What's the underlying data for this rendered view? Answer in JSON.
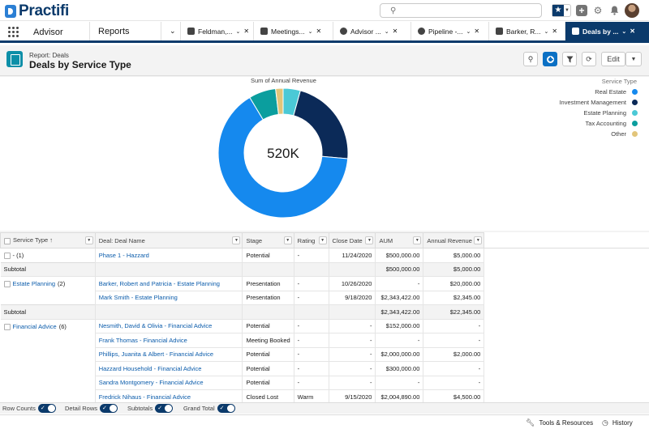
{
  "app": {
    "logo_text": "Practifi",
    "app_name": "Advisor"
  },
  "nav_tabs": [
    {
      "label": "Reports"
    },
    {
      "label": "Feldman,..."
    },
    {
      "label": "Meetings..."
    },
    {
      "label": "Advisor ..."
    },
    {
      "label": "Pipeline -..."
    },
    {
      "label": "Barker, R..."
    },
    {
      "label": "Deals by ..."
    }
  ],
  "report": {
    "subtitle": "Report: Deals",
    "title": "Deals by Service Type",
    "edit_label": "Edit"
  },
  "chart_data": {
    "type": "pie",
    "variant": "donut",
    "title": "Sum of Annual Revenue",
    "center_label": "520K",
    "legend_title": "Service Type",
    "legend_position": "top-right",
    "categories": [
      "Real Estate",
      "Investment Management",
      "Estate Planning",
      "Tax Accounting",
      "Other"
    ],
    "values": [
      338,
      115,
      22.3,
      35,
      9.7
    ],
    "colors": [
      "#1589ee",
      "#0b2a58",
      "#4bc9d6",
      "#0b9e9e",
      "#e2c57a"
    ]
  },
  "table": {
    "columns": [
      "Service Type ↑",
      "Deal: Deal Name",
      "Stage",
      "Rating",
      "Close Date",
      "AUM",
      "Annual Revenue"
    ],
    "groups": [
      {
        "label": "- (1)",
        "count": "",
        "rows": [
          {
            "deal": "Phase 1 - Hazzard",
            "stage": "Potential",
            "rating": "-",
            "close": "11/24/2020",
            "aum": "$500,000.00",
            "rev": "$5,000.00"
          }
        ],
        "subtotal": {
          "label": "Subtotal",
          "aum": "$500,000.00",
          "rev": "$5,000.00"
        }
      },
      {
        "label": "Estate Planning",
        "count": "(2)",
        "rows": [
          {
            "deal": "Barker, Robert and Patricia - Estate Planning",
            "stage": "Presentation",
            "rating": "-",
            "close": "10/26/2020",
            "aum": "-",
            "rev": "$20,000.00"
          },
          {
            "deal": "Mark Smith - Estate Planning",
            "stage": "Presentation",
            "rating": "-",
            "close": "9/18/2020",
            "aum": "$2,343,422.00",
            "rev": "$2,345.00"
          }
        ],
        "subtotal": {
          "label": "Subtotal",
          "aum": "$2,343,422.00",
          "rev": "$22,345.00"
        }
      },
      {
        "label": "Financial Advice",
        "count": "(6)",
        "rows": [
          {
            "deal": "Nesmith, David & Olivia - Financial Advice",
            "stage": "Potential",
            "rating": "-",
            "close": "-",
            "aum": "$152,000.00",
            "rev": "-"
          },
          {
            "deal": "Frank Thomas - Financial Advice",
            "stage": "Meeting Booked",
            "rating": "-",
            "close": "-",
            "aum": "-",
            "rev": "-"
          },
          {
            "deal": "Phillips, Juanita & Albert - Financial Advice",
            "stage": "Potential",
            "rating": "-",
            "close": "-",
            "aum": "$2,000,000.00",
            "rev": "$2,000.00"
          },
          {
            "deal": "Hazzard Household - Financial Advice",
            "stage": "Potential",
            "rating": "-",
            "close": "-",
            "aum": "$300,000.00",
            "rev": "-"
          },
          {
            "deal": "Sandra Montgomery - Financial Advice",
            "stage": "Potential",
            "rating": "-",
            "close": "-",
            "aum": "-",
            "rev": "-"
          },
          {
            "deal": "Fredrick Nihaus - Financial Advice",
            "stage": "Closed Lost",
            "rating": "Warm",
            "close": "9/15/2020",
            "aum": "$2,004,890.00",
            "rev": "$4,500.00"
          }
        ]
      }
    ]
  },
  "toggles": [
    {
      "label": "Row Counts"
    },
    {
      "label": "Detail Rows"
    },
    {
      "label": "Subtotals"
    },
    {
      "label": "Grand Total"
    }
  ],
  "footer": {
    "tools": "Tools & Resources",
    "history": "History"
  }
}
